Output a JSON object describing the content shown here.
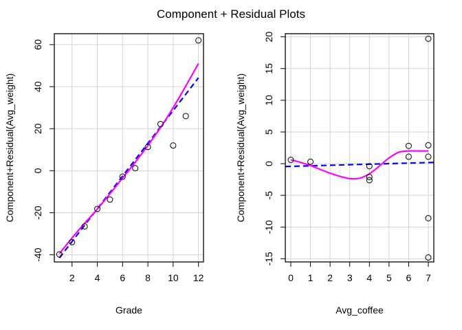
{
  "title": "Component + Residual Plots",
  "chart_data": [
    {
      "type": "scatter",
      "xlabel": "Grade",
      "ylabel": "Component+Residual(Avg_weight)",
      "xlim": [
        0.6,
        12.4
      ],
      "ylim": [
        -43.4,
        65.2
      ],
      "xticks": [
        2,
        4,
        6,
        8,
        10,
        12
      ],
      "yticks": [
        -40,
        -20,
        0,
        20,
        40,
        60
      ],
      "grid": true,
      "points": {
        "x": [
          1,
          2,
          3,
          4,
          5,
          6,
          7,
          8,
          9,
          10,
          11,
          12
        ],
        "y": [
          -39.8,
          -34,
          -26.5,
          -18.2,
          -13.7,
          -2.8,
          1.2,
          11.3,
          22.2,
          12,
          26,
          62
        ]
      },
      "linear_fit": {
        "color": "#0000ff",
        "style": "dashed",
        "x": [
          1,
          12
        ],
        "y": [
          -41.5,
          44.2
        ]
      },
      "smooth_fit": {
        "color": "#ff00ff",
        "x": [
          1,
          2,
          3,
          4,
          5,
          6,
          7,
          8,
          9,
          10,
          11,
          12
        ],
        "y": [
          -39.5,
          -32,
          -25,
          -18.3,
          -11,
          -3.5,
          4,
          12,
          20.5,
          30,
          40.3,
          51
        ]
      }
    },
    {
      "type": "scatter",
      "xlabel": "Avg_coffee",
      "ylabel": "Component+Residual(Avg_weight)",
      "xlim": [
        -0.28,
        7.28
      ],
      "ylim": [
        -15.5,
        20.5
      ],
      "xticks": [
        0,
        1,
        2,
        3,
        4,
        5,
        6,
        7
      ],
      "yticks": [
        -15,
        -10,
        -5,
        0,
        5,
        10,
        15,
        20
      ],
      "grid": true,
      "points": {
        "x": [
          0,
          1,
          4,
          4,
          4,
          6,
          6,
          7,
          7,
          7,
          7,
          7
        ],
        "y": [
          0.6,
          0.3,
          -0.4,
          -2.1,
          -2.6,
          2.8,
          1.1,
          19.7,
          2.9,
          1.1,
          -8.6,
          -14.8
        ]
      },
      "linear_fit": {
        "color": "#0000ff",
        "style": "dashed",
        "x": [
          -0.28,
          7.28
        ],
        "y": [
          -0.45,
          0.2
        ]
      },
      "smooth_fit": {
        "color": "#ff00ff",
        "x": [
          0,
          0.5,
          1,
          1.5,
          2,
          2.5,
          3,
          3.5,
          4,
          4.5,
          5,
          5.5,
          6,
          6.5,
          7
        ],
        "y": [
          0.6,
          0.2,
          -0.3,
          -0.9,
          -1.5,
          -2.0,
          -2.35,
          -2.3,
          -1.6,
          -0.4,
          0.9,
          1.8,
          2.0,
          2.0,
          2.0
        ]
      }
    }
  ]
}
